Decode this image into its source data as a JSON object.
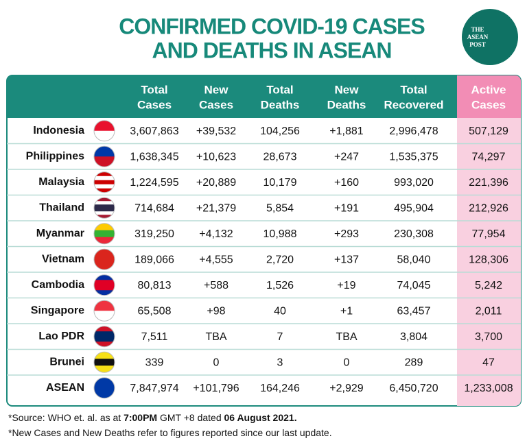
{
  "header": {
    "title_lines": [
      "CONFIRMED COVID-19 CASES",
      "AND DEATHS IN ASEAN"
    ],
    "logo_lines": [
      "THE",
      "ASEAN",
      "POST"
    ]
  },
  "table": {
    "columns": [
      [
        "Total",
        "Cases"
      ],
      [
        "New",
        "Cases"
      ],
      [
        "Total",
        "Deaths"
      ],
      [
        "New",
        "Deaths"
      ],
      [
        "Total",
        "Recovered"
      ],
      [
        "Active",
        "Cases"
      ]
    ],
    "rows": [
      [
        "Indonesia",
        "3,607,863",
        "+39,532",
        "104,256",
        "+1,881",
        "2,996,478",
        "507,129"
      ],
      [
        "Philippines",
        "1,638,345",
        "+10,623",
        "28,673",
        "+247",
        "1,535,375",
        "74,297"
      ],
      [
        "Malaysia",
        "1,224,595",
        "+20,889",
        "10,179",
        "+160",
        "993,020",
        "221,396"
      ],
      [
        "Thailand",
        "714,684",
        "+21,379",
        "5,854",
        "+191",
        "495,904",
        "212,926"
      ],
      [
        "Myanmar",
        "319,250",
        "+4,132",
        "10,988",
        "+293",
        "230,308",
        "77,954"
      ],
      [
        "Vietnam",
        "189,066",
        "+4,555",
        "2,720",
        "+137",
        "58,040",
        "128,306"
      ],
      [
        "Cambodia",
        "80,813",
        "+588",
        "1,526",
        "+19",
        "74,045",
        "5,242"
      ],
      [
        "Singapore",
        "65,508",
        "+98",
        "40",
        "+1",
        "63,457",
        "2,011"
      ],
      [
        "Lao PDR",
        "7,511",
        "TBA",
        "7",
        "TBA",
        "3,804",
        "3,700"
      ],
      [
        "Brunei",
        "339",
        "0",
        "3",
        "0",
        "289",
        "47"
      ],
      [
        "ASEAN",
        "7,847,974",
        "+101,796",
        "164,246",
        "+2,929",
        "6,450,720",
        "1,233,008"
      ]
    ]
  },
  "footnotes": [
    [
      {
        "text": "*Source: WHO et. al. as at ",
        "bold": false
      },
      {
        "text": "7:00PM",
        "bold": true
      },
      {
        "text": " GMT +8 dated ",
        "bold": false
      },
      {
        "text": "06 August 2021.",
        "bold": true
      }
    ],
    [
      {
        "text": "*New Cases and New Deaths refer to figures reported since our last update.",
        "bold": false
      }
    ]
  ]
}
